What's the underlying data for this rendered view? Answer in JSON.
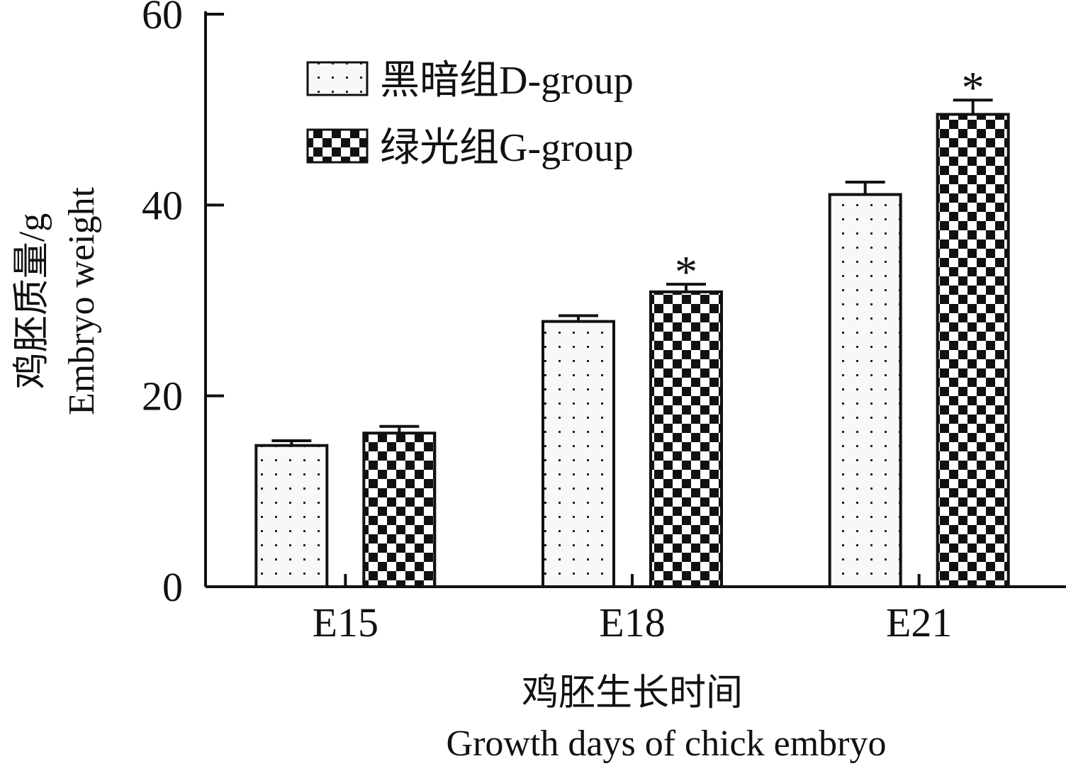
{
  "chart_data": {
    "type": "bar",
    "categories": [
      "E15",
      "E18",
      "E21"
    ],
    "series": [
      {
        "name": "黑暗组D-group",
        "pattern": "dots",
        "values": [
          14.8,
          27.8,
          41.1
        ],
        "errors": [
          0.5,
          0.6,
          1.3
        ],
        "significant": [
          false,
          false,
          false
        ]
      },
      {
        "name": "绿光组G-group",
        "pattern": "checker",
        "values": [
          16.1,
          30.9,
          49.5
        ],
        "errors": [
          0.7,
          0.8,
          1.5
        ],
        "significant": [
          false,
          true,
          true
        ]
      }
    ],
    "significance_marker": "*",
    "ylim": [
      0,
      60
    ],
    "yticks": [
      0,
      20,
      40,
      60
    ],
    "xlabel_lines": [
      "鸡胚生长时间",
      "Growth days of chick embryo"
    ],
    "ylabel_lines": [
      "鸡胚质量/g",
      "Embryo weight"
    ],
    "legend_position": "top-left",
    "grid": false,
    "colors": {
      "ink": "#111111",
      "background": "#ffffff",
      "dot_fill": "#f8f8f8"
    }
  }
}
